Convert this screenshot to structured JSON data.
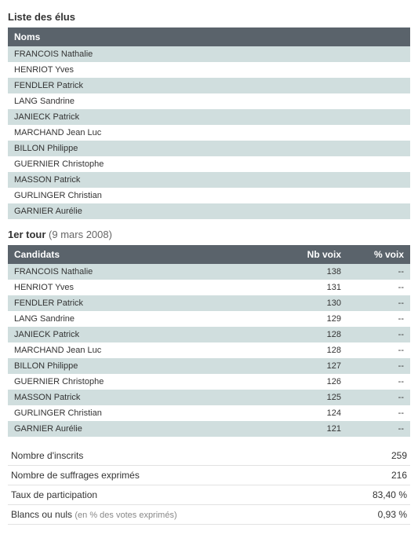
{
  "colors": {
    "header_bg": "#5a636b",
    "header_text": "#ffffff",
    "row_odd": "#d0dede",
    "row_even": "#ffffff",
    "border": "#e2e2e2"
  },
  "elected": {
    "title": "Liste des élus",
    "header": "Noms",
    "names": [
      "FRANCOIS Nathalie",
      "HENRIOT Yves",
      "FENDLER Patrick",
      "LANG Sandrine",
      "JANIECK Patrick",
      "MARCHAND Jean Luc",
      "BILLON Philippe",
      "GUERNIER Christophe",
      "MASSON Patrick",
      "GURLINGER Christian",
      "GARNIER Aurélie"
    ]
  },
  "round1": {
    "title": "1er tour",
    "date": "(9 mars 2008)",
    "headers": {
      "cand": "Candidats",
      "nb": "Nb voix",
      "pct": "% voix"
    },
    "rows": [
      {
        "name": "FRANCOIS Nathalie",
        "nb": "138",
        "pct": "--"
      },
      {
        "name": "HENRIOT Yves",
        "nb": "131",
        "pct": "--"
      },
      {
        "name": "FENDLER Patrick",
        "nb": "130",
        "pct": "--"
      },
      {
        "name": "LANG Sandrine",
        "nb": "129",
        "pct": "--"
      },
      {
        "name": "JANIECK Patrick",
        "nb": "128",
        "pct": "--"
      },
      {
        "name": "MARCHAND Jean Luc",
        "nb": "128",
        "pct": "--"
      },
      {
        "name": "BILLON Philippe",
        "nb": "127",
        "pct": "--"
      },
      {
        "name": "GUERNIER Christophe",
        "nb": "126",
        "pct": "--"
      },
      {
        "name": "MASSON Patrick",
        "nb": "125",
        "pct": "--"
      },
      {
        "name": "GURLINGER Christian",
        "nb": "124",
        "pct": "--"
      },
      {
        "name": "GARNIER Aurélie",
        "nb": "121",
        "pct": "--"
      }
    ]
  },
  "summary": [
    {
      "label": "Nombre d'inscrits",
      "hint": "",
      "value": "259"
    },
    {
      "label": "Nombre de suffrages exprimés",
      "hint": "",
      "value": "216"
    },
    {
      "label": "Taux de participation",
      "hint": "",
      "value": "83,40 %"
    },
    {
      "label": "Blancs ou nuls",
      "hint": "(en % des votes exprimés)",
      "value": "0,93 %"
    }
  ]
}
